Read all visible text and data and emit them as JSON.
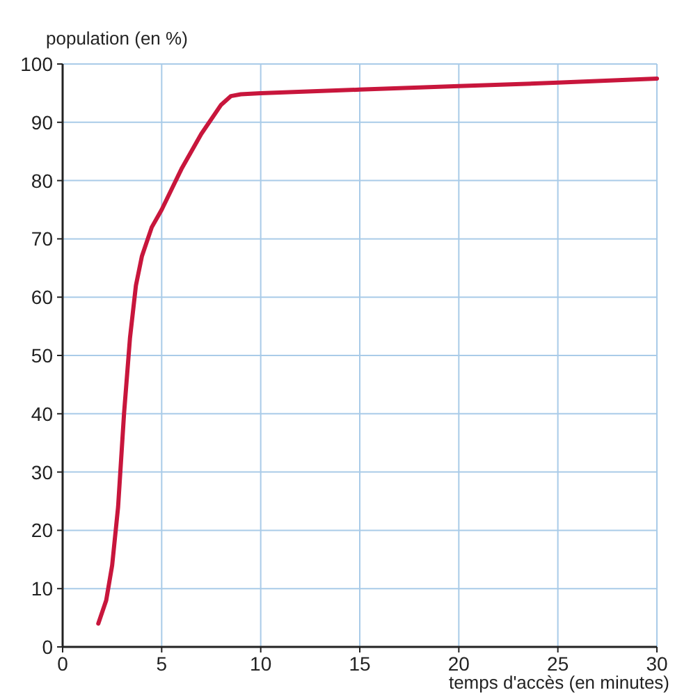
{
  "chart_data": {
    "type": "line",
    "xlabel": "temps d'accès (en minutes)",
    "ylabel": "population (en %)",
    "x": [
      1.8,
      2.2,
      2.5,
      2.8,
      3.1,
      3.4,
      3.7,
      4,
      4.5,
      5,
      6,
      7,
      8,
      8.5,
      9,
      10,
      15,
      20,
      25,
      30
    ],
    "series": [
      {
        "color": "#c8163c",
        "values": [
          4,
          8,
          14,
          24,
          40,
          53,
          62,
          67,
          72,
          75,
          82,
          88,
          93,
          94.5,
          94.8,
          95,
          95.6,
          96.2,
          96.8,
          97.5
        ]
      }
    ],
    "xlim": [
      0,
      30
    ],
    "ylim": [
      0,
      100
    ],
    "xticks": [
      0,
      5,
      10,
      15,
      20,
      25,
      30
    ],
    "yticks": [
      0,
      10,
      20,
      30,
      40,
      50,
      60,
      70,
      80,
      90,
      100
    ],
    "grid": true,
    "marker": "none",
    "line_style": "solid"
  }
}
